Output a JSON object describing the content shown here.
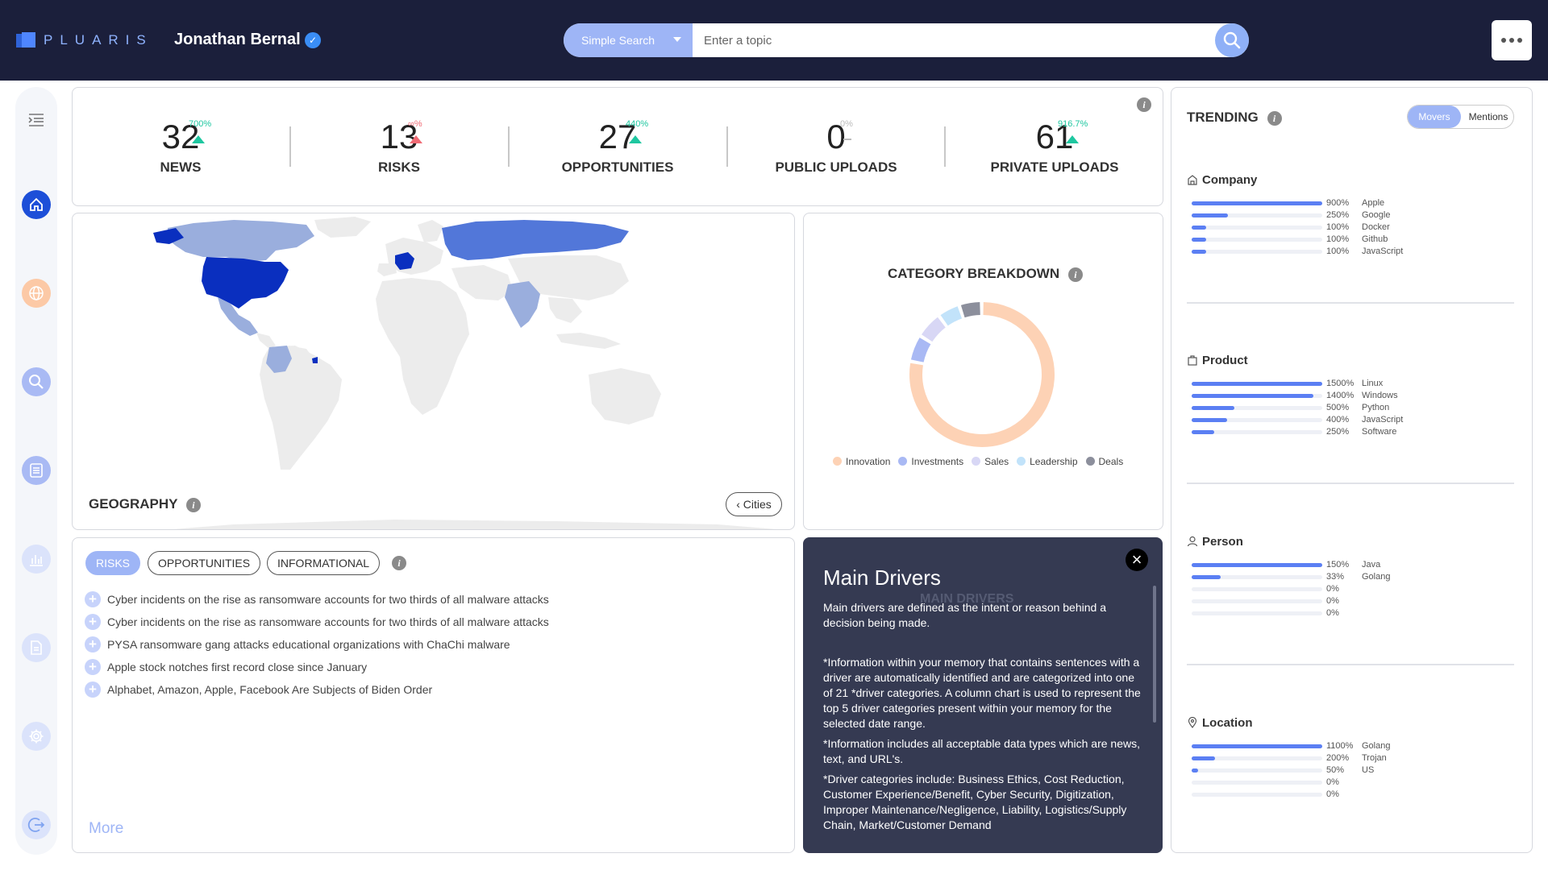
{
  "header": {
    "logo_text": "PLUARIS",
    "user_name": "Jonathan Bernal",
    "search_type": "Simple Search",
    "search_placeholder": "Enter a topic"
  },
  "sidebar": {
    "icons": [
      "menu-icon",
      "home-icon",
      "globe-icon",
      "search-icon",
      "document-list-icon",
      "bar-chart-icon",
      "file-icon",
      "gear-icon",
      "logout-icon"
    ]
  },
  "stats": [
    {
      "value": "32",
      "delta": "700%",
      "direction": "up",
      "label": "NEWS"
    },
    {
      "value": "13",
      "delta": "∞%",
      "direction": "up-red",
      "label": "RISKS"
    },
    {
      "value": "27",
      "delta": "440%",
      "direction": "up",
      "label": "OPPORTUNITIES"
    },
    {
      "value": "0",
      "delta": "0%",
      "direction": "flat",
      "label": "PUBLIC UPLOADS"
    },
    {
      "value": "61",
      "delta": "916.7%",
      "direction": "up",
      "label": "PRIVATE UPLOADS"
    }
  ],
  "geography": {
    "title": "GEOGRAPHY",
    "cities_button": "Cities",
    "countries": [
      {
        "name": "United States",
        "level": "high"
      },
      {
        "name": "France",
        "level": "high"
      },
      {
        "name": "Russia",
        "level": "medium"
      },
      {
        "name": "Canada",
        "level": "low"
      },
      {
        "name": "Mexico",
        "level": "low"
      },
      {
        "name": "India",
        "level": "low"
      },
      {
        "name": "Colombia",
        "level": "low"
      }
    ],
    "colors": {
      "high": "#0a2fbf",
      "medium": "#5277d9",
      "low": "#9aaedd",
      "none": "#ececec"
    }
  },
  "category_breakdown": {
    "title": "CATEGORY BREAKDOWN",
    "chart_data": {
      "type": "pie",
      "labels": [
        "Innovation",
        "Investments",
        "Sales",
        "Leadership",
        "Deals"
      ],
      "values": [
        78,
        6,
        6,
        5,
        5
      ],
      "colors": [
        "#fdd2b5",
        "#a9b9f4",
        "#d8d7f5",
        "#c2e3fa",
        "#8c8f9c"
      ]
    }
  },
  "risks_panel": {
    "tabs": [
      "RISKS",
      "OPPORTUNITIES",
      "INFORMATIONAL"
    ],
    "active_tab": "RISKS",
    "items": [
      "Cyber incidents on the rise as ransomware accounts for two thirds of all malware attacks",
      "Cyber incidents on the rise as ransomware accounts for two thirds of all malware attacks",
      "PYSA ransomware gang attacks educational organizations with ChaChi malware",
      "Apple stock notches first record close since January",
      "Alphabet, Amazon, Apple, Facebook Are Subjects of Biden Order"
    ],
    "more_label": "More"
  },
  "main_drivers": {
    "title": "Main Drivers",
    "ghost_title": "MAIN DRIVERS",
    "paragraphs": [
      "Main drivers are defined as the intent or reason behind a decision being made.",
      "",
      "*Information within your memory that contains sentences with a driver are automatically identified and are categorized into one of 21 *driver categories. A column chart is used to represent the top 5 driver categories present within your memory for the selected date range.",
      "*Information includes all acceptable data types which are news, text, and URL's.",
      "*Driver categories include: Business Ethics, Cost Reduction, Customer Experience/Benefit, Cyber Security, Digitization, Improper Maintenance/Negligence, Liability, Logistics/Supply Chain, Market/Customer Demand"
    ]
  },
  "trending": {
    "title": "TRENDING",
    "toggle": {
      "on": "Movers",
      "off": "Mentions"
    },
    "sections": [
      {
        "title": "Company",
        "icon": "building-icon",
        "rows": [
          {
            "pct": "900%",
            "name": "Apple",
            "fill": 1.0
          },
          {
            "pct": "250%",
            "name": "Google",
            "fill": 0.28
          },
          {
            "pct": "100%",
            "name": "Docker",
            "fill": 0.11
          },
          {
            "pct": "100%",
            "name": "Github",
            "fill": 0.11
          },
          {
            "pct": "100%",
            "name": "JavaScript",
            "fill": 0.11
          }
        ]
      },
      {
        "title": "Product",
        "icon": "bag-icon",
        "rows": [
          {
            "pct": "1500%",
            "name": "Linux",
            "fill": 1.0
          },
          {
            "pct": "1400%",
            "name": "Windows",
            "fill": 0.93
          },
          {
            "pct": "500%",
            "name": "Python",
            "fill": 0.33
          },
          {
            "pct": "400%",
            "name": "JavaScript",
            "fill": 0.27
          },
          {
            "pct": "250%",
            "name": "Software",
            "fill": 0.17
          }
        ]
      },
      {
        "title": "Person",
        "icon": "person-icon",
        "rows": [
          {
            "pct": "150%",
            "name": "Java",
            "fill": 1.0
          },
          {
            "pct": "33%",
            "name": "Golang",
            "fill": 0.22
          },
          {
            "pct": "0%",
            "name": "",
            "fill": 0
          },
          {
            "pct": "0%",
            "name": "",
            "fill": 0
          },
          {
            "pct": "0%",
            "name": "",
            "fill": 0
          }
        ]
      },
      {
        "title": "Location",
        "icon": "pin-icon",
        "rows": [
          {
            "pct": "1100%",
            "name": "Golang",
            "fill": 1.0
          },
          {
            "pct": "200%",
            "name": "Trojan",
            "fill": 0.18
          },
          {
            "pct": "50%",
            "name": "US",
            "fill": 0.05
          },
          {
            "pct": "0%",
            "name": "",
            "fill": 0
          },
          {
            "pct": "0%",
            "name": "",
            "fill": 0
          }
        ]
      }
    ]
  }
}
